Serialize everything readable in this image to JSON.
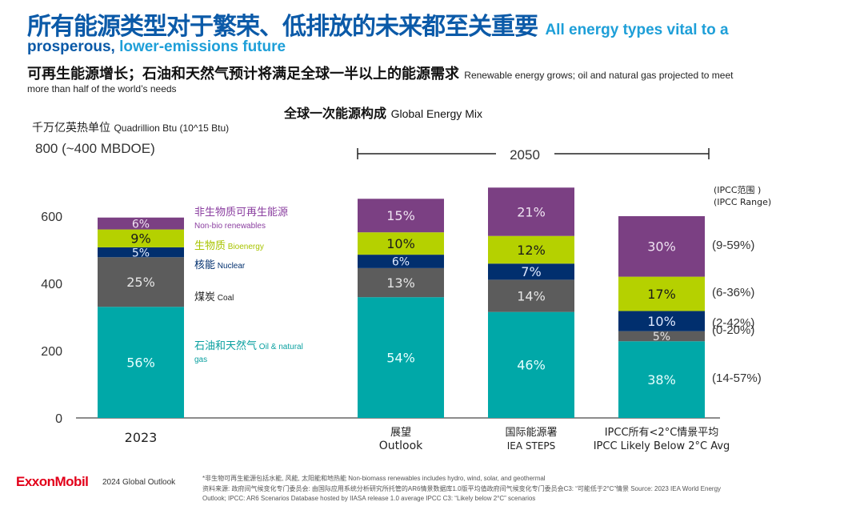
{
  "header": {
    "title_cn": "所有能源类型对于繁荣、低排放的未来都至关重要",
    "title_en_1": "All energy types vital to a",
    "title_en_2a": "prosperous, ",
    "title_en_2b": "lower-emissions future",
    "subtitle_cn": "可再生能源增长；石油和天然气预计将满足全球一半以上的能源需求",
    "subtitle_en_1": "Renewable energy grows; oil and natural gas projected to meet",
    "subtitle_en_2": "more than half of the world’s needs"
  },
  "chart_data": {
    "type": "bar",
    "stacked": true,
    "title": "全球一次能源构成 Global Energy Mix",
    "title_cn": "全球一次能源构成",
    "title_en": "Global Energy Mix",
    "ylabel_cn": "千万亿英热单位",
    "ylabel_en": "Quadrillion Btu (10^15 Btu)",
    "ylim": [
      0,
      800
    ],
    "yticks": [
      0,
      200,
      400,
      600
    ],
    "ytop_label": "800 (~400 MBDOE)",
    "period_bracket": "2050",
    "categories": [
      {
        "cn": "",
        "en": "2023",
        "total": 590
      },
      {
        "cn": "展望",
        "en": "Outlook",
        "total": 665
      },
      {
        "cn": "国际能源署",
        "en": "IEA STEPS",
        "total": 685
      },
      {
        "cn": "IPCC所有<2°C情景平均",
        "en": "IPCC Likely Below 2°C Avg",
        "total": 600
      }
    ],
    "series": [
      {
        "name": "Oil & natural gas",
        "name_cn": "石油和天然气",
        "color": "#00a8a8",
        "label_color": "#e8ffff",
        "values": [
          56,
          54,
          46,
          38
        ]
      },
      {
        "name": "Coal",
        "name_cn": "煤炭",
        "color": "#5c5c5c",
        "label_color": "#e6e6e6",
        "values": [
          25,
          13,
          14,
          5
        ]
      },
      {
        "name": "Nuclear",
        "name_cn": "核能",
        "color": "#012f6e",
        "label_color": "#dfe9ff",
        "values": [
          5,
          6,
          7,
          10
        ]
      },
      {
        "name": "Bioenergy",
        "name_cn": "生物质",
        "color": "#b5d100",
        "label_color": "#1a1a1a",
        "values": [
          9,
          10,
          12,
          17
        ]
      },
      {
        "name": "Non-bio renewables",
        "name_cn": "非生物质可再生能源",
        "color": "#7b4083",
        "label_color": "#efe3f2",
        "values": [
          6,
          15,
          21,
          30
        ]
      }
    ],
    "value_unit": "% share of total",
    "legend": [
      {
        "cn": "非生物质可再生能源",
        "en": "Non-bio renewables",
        "color": "#8b3fa0"
      },
      {
        "cn": "生物质",
        "en": "Bioenergy",
        "color": "#a8c400"
      },
      {
        "cn": "核能",
        "en": "Nuclear",
        "color": "#012f6e"
      },
      {
        "cn": "煤炭",
        "en": "Coal",
        "color": "#222222"
      },
      {
        "cn": "石油和天然气",
        "en": "Oil & natural gas",
        "color": "#0aa0a0"
      }
    ],
    "ipcc_range_header_cn": "(IPCC范围 )",
    "ipcc_range_header_en": "(IPCC Range)",
    "ipcc_ranges": [
      "(14-57%)",
      "(0-20%)",
      "(2-42%)",
      "(6-36%)",
      "(9-59%)"
    ]
  },
  "footer": {
    "brand": "ExxonMobil",
    "report": "2024 Global Outlook",
    "note1": "*非生物可再生能源包括水能, 风能, 太阳能和地热能  Non-biomass renewables includes hydro, wind, solar, and geothermal",
    "note2": "资料来源: 政府间气候变化专门委员会: 由国际应用系统分析研究所托管的AR6情景数据库1.0版平均值政府间气候变化专门委员会C3: “可能低于2°C”情景  Source: 2023 IEA World Energy",
    "note3": "Outlook; IPCC: AR6 Scenarios Database hosted by IIASA release 1.0 average  IPCC C3: “Likely below 2°C” scenarios"
  }
}
